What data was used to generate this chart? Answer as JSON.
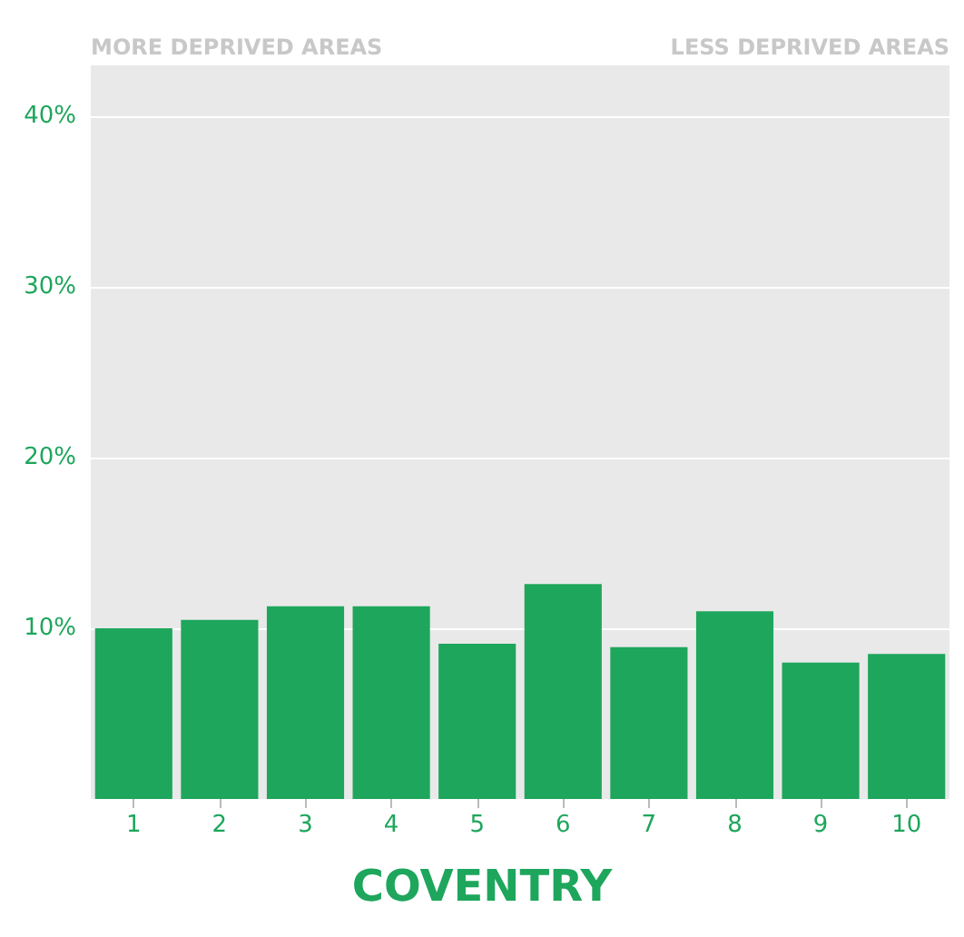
{
  "chart_data": {
    "type": "bar",
    "xlabel": "COVENTRY",
    "categories": [
      "1",
      "2",
      "3",
      "4",
      "5",
      "6",
      "7",
      "8",
      "9",
      "10"
    ],
    "values": [
      10.0,
      10.5,
      11.3,
      11.3,
      9.1,
      12.6,
      8.9,
      11.0,
      8.0,
      8.5
    ],
    "color": "#1ea65c",
    "ylim": [
      0,
      43
    ],
    "yticks": [
      {
        "value": 10,
        "label": "10%"
      },
      {
        "value": 20,
        "label": "20%"
      },
      {
        "value": 30,
        "label": "30%"
      },
      {
        "value": 40,
        "label": "40%"
      }
    ],
    "grid": "y",
    "annotations": [
      "MORE DEPRIVED AREAS",
      "LESS DEPRIVED AREAS"
    ]
  }
}
